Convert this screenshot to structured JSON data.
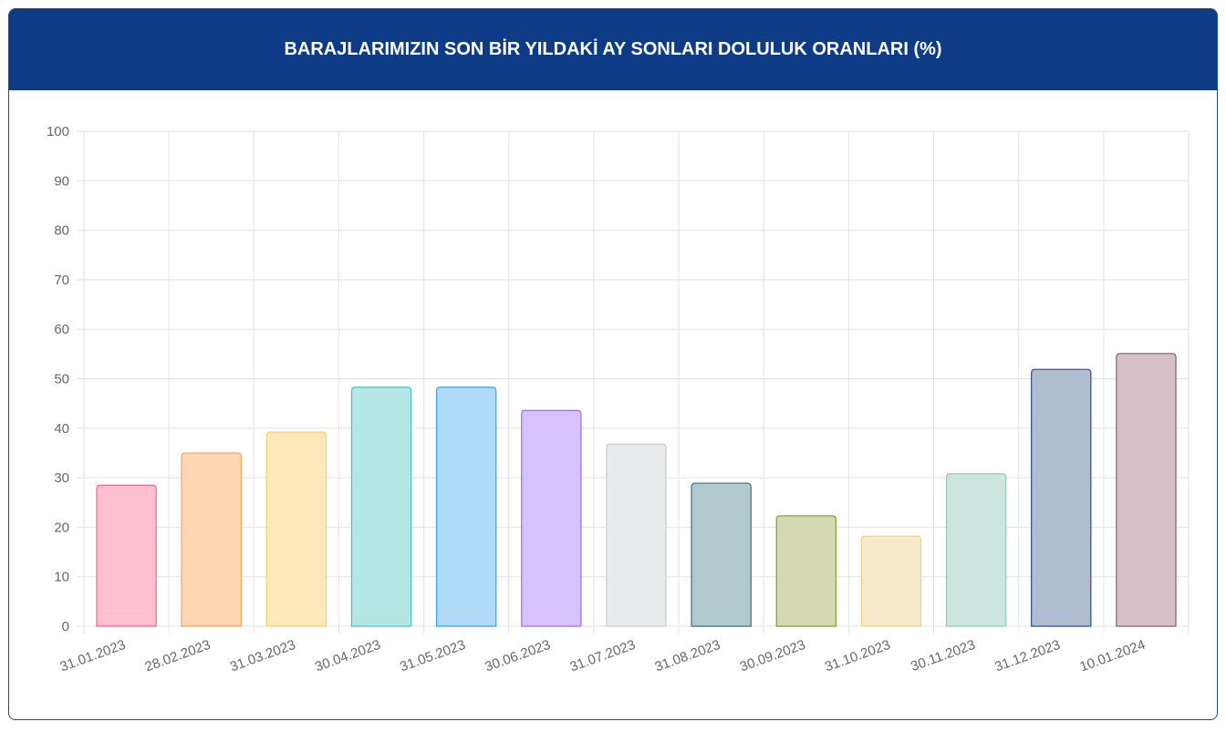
{
  "chart_data": {
    "type": "bar",
    "title": "BARAJLARIMIZIN SON BİR YILDAKİ AY SONLARI DOLULUK ORANLARI (%)",
    "categories": [
      "31.01.2023",
      "28.02.2023",
      "31.03.2023",
      "30.04.2023",
      "31.05.2023",
      "30.06.2023",
      "31.07.2023",
      "31.08.2023",
      "30.09.2023",
      "31.10.2023",
      "30.11.2023",
      "31.12.2023",
      "10.01.2024"
    ],
    "values": [
      28.5,
      35.0,
      39.2,
      48.3,
      48.3,
      43.6,
      36.8,
      28.9,
      22.3,
      18.2,
      30.8,
      51.9,
      55.1
    ],
    "colors": [
      "#ffc0cf",
      "#fed6b1",
      "#ffe9ba",
      "#b4e6e5",
      "#b0dbf8",
      "#d7c2fe",
      "#e8e9eb",
      "#b0cacf",
      "#d4d9b1",
      "#f6eacb",
      "#cce6df",
      "#b0bcd0",
      "#d6c0c8"
    ],
    "border_colors": [
      "#f06a8d",
      "#f4a65c",
      "#f5cf6e",
      "#4cc1c0",
      "#3aa2e0",
      "#9c6ce8",
      "#c9cbcf",
      "#3e6f78",
      "#8a9a3e",
      "#efd08a",
      "#8fcab6",
      "#2f4e84",
      "#8a5c70"
    ],
    "ylim": [
      0,
      100
    ],
    "yticks": [
      0,
      10,
      20,
      30,
      40,
      50,
      60,
      70,
      80,
      90,
      100
    ],
    "grid": true
  }
}
